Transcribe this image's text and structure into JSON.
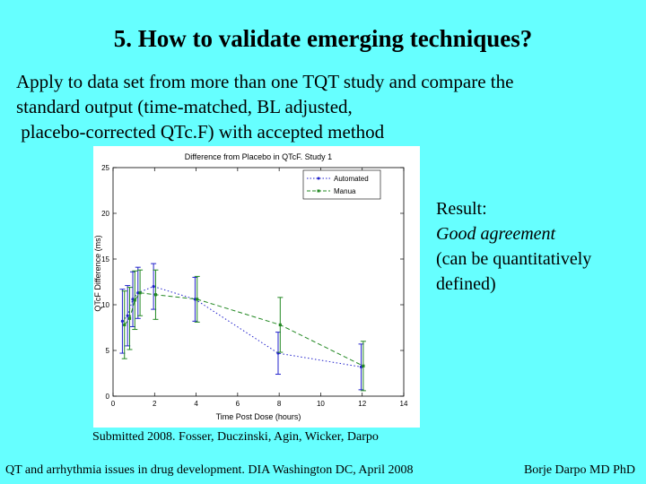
{
  "slide": {
    "title": "5. How to validate emerging techniques?",
    "intro_lines": [
      "Apply to data set from more than one TQT study and compare the",
      "standard output (time-matched, BL adjusted,",
      " placebo-corrected QTc.F) with accepted method"
    ],
    "result": {
      "heading": "Result:",
      "emphasis": "Good agreement",
      "detail_lines": [
        "(can be quantitatively",
        "defined)"
      ]
    },
    "submitted": "Submitted 2008. Fosser, Duczinski, Agin, Wicker, Darpo",
    "footer_left": "QT and arrhythmia issues in drug development. DIA Washington DC, April 2008",
    "footer_right": "Borje Darpo MD PhD"
  },
  "chart_data": {
    "type": "line",
    "title": "Difference from Placebo in QTcF. Study 1",
    "xlabel": "Time Post Dose (hours)",
    "ylabel": "QTcF Difference (ms)",
    "xlim": [
      0,
      14
    ],
    "ylim": [
      0,
      25
    ],
    "xticks": [
      0,
      2,
      4,
      6,
      8,
      10,
      12,
      14
    ],
    "yticks": [
      0,
      5,
      10,
      15,
      20,
      25
    ],
    "grid": false,
    "legend_position": "top-right",
    "series": [
      {
        "name": "Automated",
        "color": "#2222cc",
        "style": "dotted",
        "x": [
          0.5,
          0.75,
          1,
          1.25,
          2,
          4,
          8,
          12
        ],
        "y": [
          8.2,
          8.8,
          10.6,
          11.3,
          12.0,
          10.6,
          4.7,
          3.2
        ],
        "err": [
          3.5,
          3.3,
          3.0,
          2.8,
          2.5,
          2.4,
          2.3,
          2.5
        ]
      },
      {
        "name": "Manual",
        "color": "#228822",
        "style": "dashed",
        "x": [
          0.5,
          0.75,
          1,
          1.25,
          2,
          4,
          8,
          12
        ],
        "y": [
          7.8,
          8.5,
          10.5,
          11.3,
          11.1,
          10.6,
          7.8,
          3.3
        ],
        "err": [
          3.7,
          3.4,
          3.2,
          2.5,
          2.7,
          2.5,
          3.0,
          2.7
        ]
      }
    ]
  }
}
